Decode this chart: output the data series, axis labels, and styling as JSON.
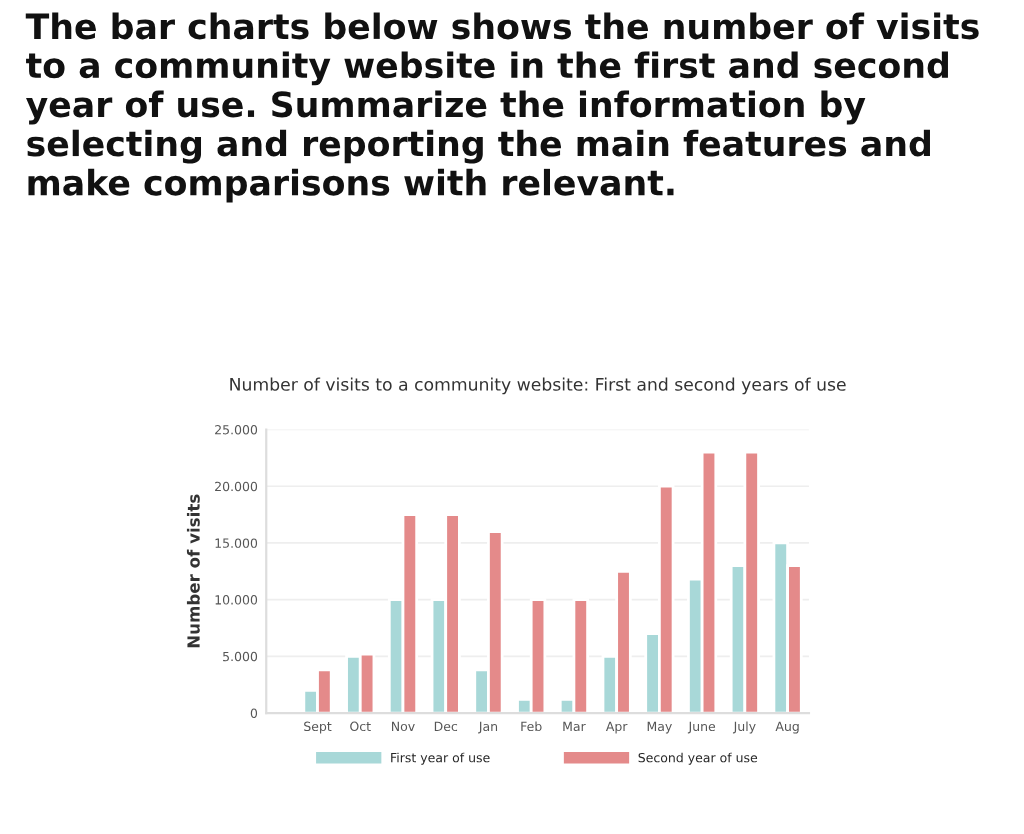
{
  "chart_data": {
    "type": "bar",
    "title": "The bar charts below shows the number of visits to a community website in the first and second year of use. Summarize the information by selecting and reporting the main features and make comparisons with relevant.",
    "subtitle": "Number of visits to a community website: First and second years of use",
    "ylabel": "Number of visits",
    "categories": [
      "Sept",
      "Oct",
      "Nov",
      "Dec",
      "Jan",
      "Feb",
      "Mar",
      "Apr",
      "May",
      "June",
      "July",
      "Aug"
    ],
    "series": [
      {
        "name": "First year of use",
        "color": "#a8d8d8",
        "values": [
          2000,
          5000,
          10000,
          10000,
          3800,
          1200,
          1200,
          5000,
          7000,
          11800,
          13000,
          15000
        ]
      },
      {
        "name": "Second year of use",
        "color": "#e48a8a",
        "values": [
          3800,
          5200,
          17500,
          17500,
          16000,
          10000,
          10000,
          12500,
          20000,
          23000,
          23000,
          13000
        ]
      }
    ],
    "ylim": [
      0,
      25000
    ],
    "yticks": [
      {
        "value": 0,
        "label": "0"
      },
      {
        "value": 5000,
        "label": "5.000"
      },
      {
        "value": 10000,
        "label": "10.000"
      },
      {
        "value": 15000,
        "label": "15.000"
      },
      {
        "value": 20000,
        "label": "20.000"
      },
      {
        "value": 25000,
        "label": "25.000"
      }
    ],
    "grid": "y",
    "legend": "bottom"
  }
}
